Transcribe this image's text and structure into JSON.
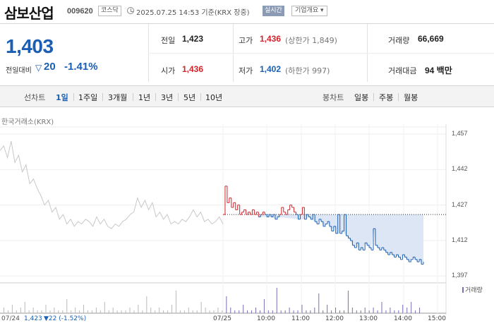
{
  "header": {
    "stock_name": "삼보산업",
    "stock_code": "009620",
    "market": "코스닥",
    "timestamp": "2025.07.25 14:53 기준(KRX 장중)",
    "realtime_label": "실시간",
    "company_button": "기업개요 ▾"
  },
  "quote": {
    "price": "1,403",
    "change_label": "전일대비",
    "change_icon": "down-triangle-icon",
    "change_value": "20",
    "change_pct": "-1.41%",
    "prev_close_label": "전일",
    "prev_close": "1,423",
    "high_label": "고가",
    "high": "1,436",
    "upper_limit": "(상한가 1,849)",
    "volume_label": "거래량",
    "volume": "66,669",
    "open_label": "시가",
    "open": "1,436",
    "low_label": "저가",
    "low": "1,402",
    "lower_limit": "(하한가 997)",
    "amount_label": "거래대금",
    "amount": "94 백만"
  },
  "tabs": {
    "line_label": "선차트",
    "line_tabs": [
      "1일",
      "1주일",
      "3개월",
      "1년",
      "3년",
      "5년",
      "10년"
    ],
    "active": "1일",
    "candle_label": "봉차트",
    "candle_tabs": [
      "일봉",
      "주봉",
      "월봉"
    ]
  },
  "chart": {
    "source": "한국거래소(KRX)",
    "volume_legend": "거래량",
    "footer_prev_date": "07/24",
    "footer_prev_close": "1,423",
    "footer_prev_change": "▼22 (-1.52%)"
  },
  "colors": {
    "up": "#d2232a",
    "down": "#1a5fb4",
    "prev_day": "#c8c8c8",
    "fill": "#dde6f5"
  },
  "chart_data": {
    "type": "line",
    "ylim": [
      1395,
      1460
    ],
    "yticks": [
      1457,
      1442,
      1427,
      1412,
      1397
    ],
    "xticks": [
      "07/25",
      "10:00",
      "11:00",
      "12:00",
      "13:00",
      "14:00",
      "15:00"
    ],
    "reference_line": 1423,
    "series": [
      {
        "values": [
          1450,
          1452,
          1447,
          1454,
          1445,
          1448,
          1441,
          1444,
          1436,
          1438,
          1434,
          1431,
          1427,
          1429,
          1424,
          1426,
          1421,
          1423,
          1419,
          1421,
          1418,
          1420,
          1419,
          1421,
          1420,
          1418,
          1422,
          1419,
          1421,
          1418,
          1417,
          1419,
          1418,
          1420,
          1421,
          1423,
          1424,
          1430,
          1426,
          1429,
          1425,
          1428,
          1422,
          1424,
          1421,
          1423,
          1419,
          1420,
          1419,
          1421,
          1420,
          1422,
          1425,
          1422,
          1424,
          1420,
          1421,
          1419,
          1420,
          1422,
          1419
        ]
      },
      {
        "values": [
          1423,
          1435,
          1428,
          1430,
          1426,
          1428,
          1425,
          1427,
          1423,
          1424,
          1425,
          1423,
          1424,
          1423,
          1425,
          1423,
          1424,
          1422,
          1423,
          1424,
          1423,
          1422,
          1423,
          1422,
          1423,
          1421,
          1422,
          1423,
          1426,
          1424,
          1423,
          1425,
          1427,
          1426,
          1424,
          1423,
          1421,
          1423,
          1426,
          1421,
          1423,
          1422,
          1421,
          1423,
          1420,
          1419,
          1421,
          1420,
          1418,
          1419,
          1420,
          1418,
          1416,
          1418,
          1415,
          1423,
          1415,
          1416,
          1423,
          1414,
          1413,
          1412,
          1410,
          1409,
          1411,
          1408,
          1409,
          1408,
          1411,
          1410,
          1409,
          1408,
          1417,
          1410,
          1409,
          1408,
          1409,
          1408,
          1407,
          1406,
          1407,
          1406,
          1405,
          1406,
          1405,
          1404,
          1406,
          1405,
          1404,
          1403,
          1404,
          1405,
          1404,
          1403,
          1404,
          1402,
          1403
        ]
      }
    ],
    "volume": [
      2,
      1,
      3,
      1,
      2,
      4,
      1,
      2,
      1,
      1,
      3,
      1,
      2,
      1,
      1,
      5,
      1,
      2,
      1,
      3,
      1,
      1,
      2,
      1,
      4,
      1,
      2,
      1,
      1,
      1,
      2,
      1,
      3,
      1,
      6,
      2,
      1,
      2,
      1,
      1,
      3,
      8,
      1,
      1,
      2,
      1,
      1,
      4,
      2,
      1,
      1,
      2,
      1,
      6,
      2,
      1,
      1,
      3,
      1,
      1,
      2,
      1,
      5,
      1,
      1,
      9,
      1,
      1,
      2,
      1,
      1,
      3,
      1,
      1,
      2,
      7,
      1,
      3,
      1,
      2,
      1,
      1,
      8,
      2,
      1,
      1,
      2,
      1,
      2,
      1,
      4,
      1,
      2,
      1,
      1,
      3,
      2,
      4,
      1,
      2
    ]
  }
}
